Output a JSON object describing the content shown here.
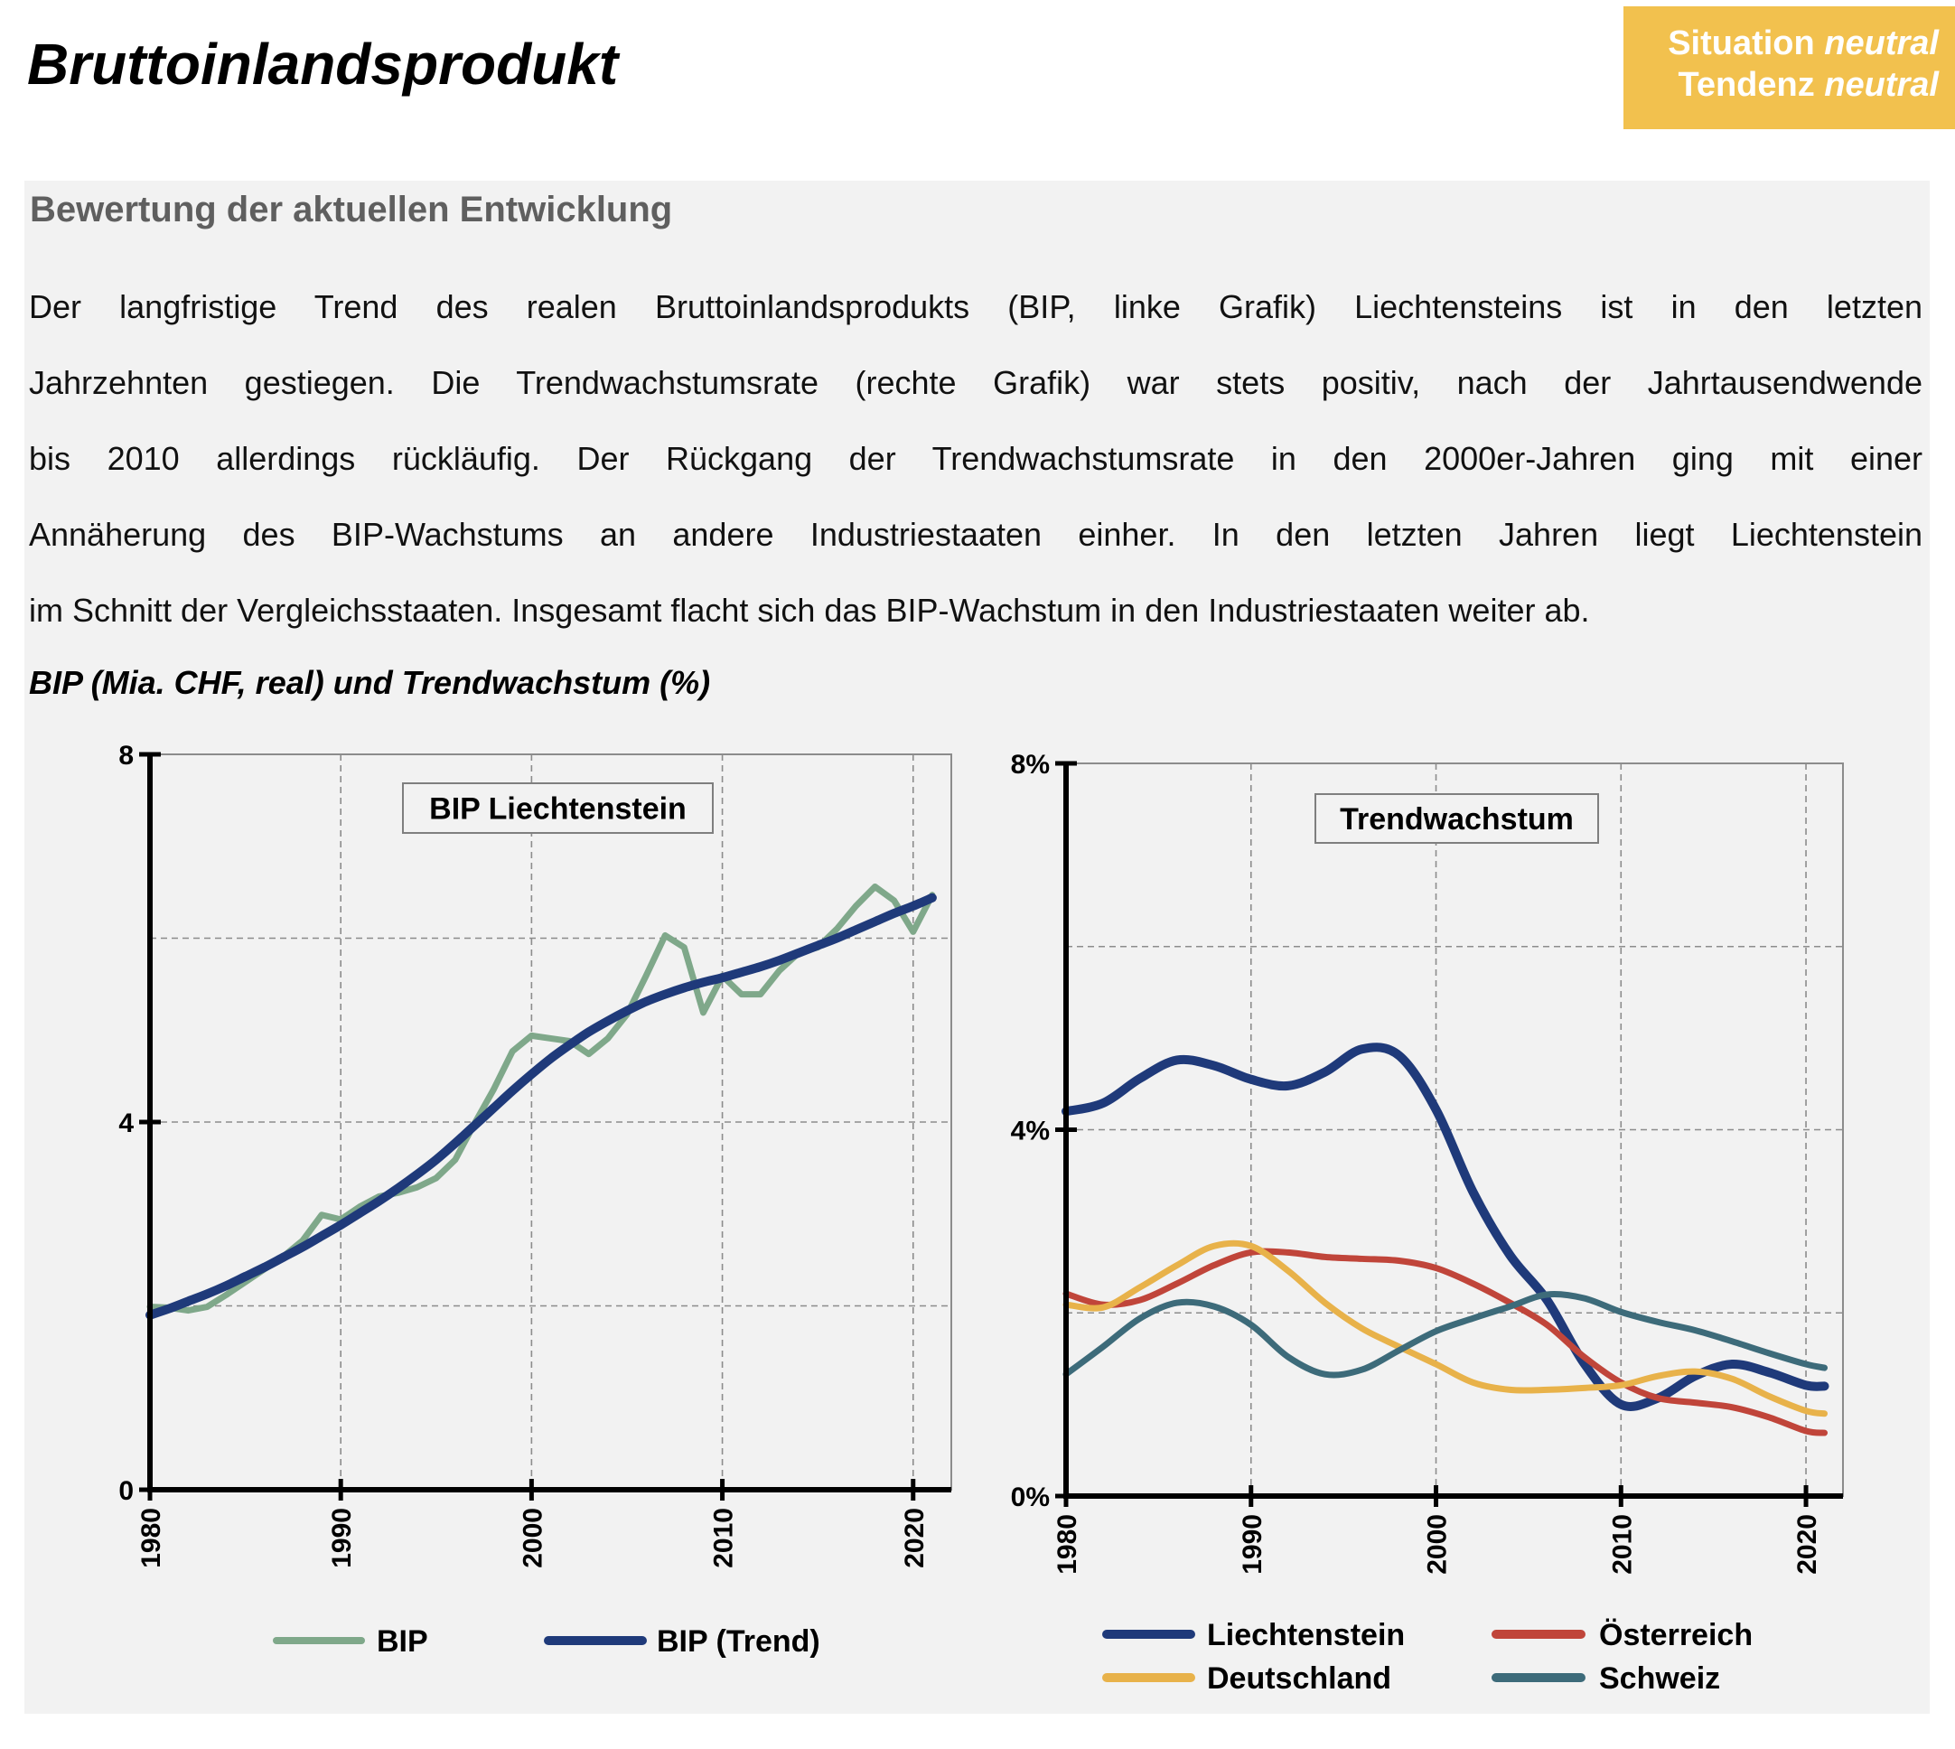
{
  "header": {
    "title": "Bruttoinlandsprodukt",
    "badge": {
      "situation_label": "Situation",
      "situation_value": "neutral",
      "tendenz_label": "Tendenz",
      "tendenz_value": "neutral",
      "color": "#f2c14e"
    }
  },
  "assessment": {
    "heading": "Bewertung der aktuellen Entwicklung",
    "lines": [
      "Der langfristige Trend des realen Bruttoinlandsprodukts (BIP, linke Grafik) Liechtensteins ist in den letzten",
      "Jahrzehnten gestiegen. Die Trendwachstumsrate (rechte Grafik) war stets positiv, nach der Jahrtausendwende",
      "bis 2010 allerdings rückläufig. Der Rückgang der Trendwachstumsrate in den 2000er-Jahren ging mit einer",
      "Annäherung des BIP-Wachstums an andere Industriestaaten einher. In den letzten Jahren liegt Liechtenstein",
      "im Schnitt der Vergleichsstaaten. Insgesamt flacht sich das BIP-Wachstum in den Industriestaaten weiter ab."
    ]
  },
  "figure_title": "BIP (Mia. CHF, real) und Trendwachstum (%)",
  "chart_data": [
    {
      "type": "line",
      "title": "BIP Liechtenstein",
      "xlabel": "",
      "ylabel": "",
      "xlim": [
        1980,
        2022
      ],
      "ylim": [
        0,
        8
      ],
      "yticks": [
        0,
        4,
        8
      ],
      "yticklabels": [
        "0",
        "4",
        "8"
      ],
      "ygrid": [
        2,
        4,
        6
      ],
      "xticks": [
        1980,
        1990,
        2000,
        2010,
        2020
      ],
      "xticklabels": [
        "1980",
        "1990",
        "2000",
        "2010",
        "2020"
      ],
      "grid": true,
      "legend": "bottom",
      "x": [
        1980,
        1981,
        1982,
        1983,
        1984,
        1985,
        1986,
        1987,
        1988,
        1989,
        1990,
        1991,
        1992,
        1993,
        1994,
        1995,
        1996,
        1997,
        1998,
        1999,
        2000,
        2001,
        2002,
        2003,
        2004,
        2005,
        2006,
        2007,
        2008,
        2009,
        2010,
        2011,
        2012,
        2013,
        2014,
        2015,
        2016,
        2017,
        2018,
        2019,
        2020,
        2021
      ],
      "series": [
        {
          "name": "BIP",
          "color": "#7fa88a",
          "smooth": false,
          "values": [
            1.99,
            1.98,
            1.95,
            1.99,
            2.12,
            2.26,
            2.4,
            2.54,
            2.71,
            2.99,
            2.94,
            3.08,
            3.19,
            3.23,
            3.29,
            3.39,
            3.59,
            3.98,
            4.35,
            4.77,
            4.94,
            4.91,
            4.88,
            4.74,
            4.91,
            5.17,
            5.59,
            6.03,
            5.9,
            5.19,
            5.59,
            5.39,
            5.39,
            5.65,
            5.84,
            5.9,
            6.1,
            6.35,
            6.56,
            6.41,
            6.07,
            6.47
          ]
        },
        {
          "name": "BIP (Trend)",
          "color": "#1f3a7a",
          "smooth": true,
          "values": [
            1.9,
            1.97,
            2.05,
            2.13,
            2.22,
            2.32,
            2.42,
            2.53,
            2.64,
            2.76,
            2.88,
            3.01,
            3.14,
            3.28,
            3.43,
            3.59,
            3.77,
            3.96,
            4.15,
            4.34,
            4.52,
            4.69,
            4.84,
            4.98,
            5.1,
            5.21,
            5.31,
            5.39,
            5.46,
            5.52,
            5.57,
            5.63,
            5.69,
            5.76,
            5.84,
            5.92,
            6.0,
            6.09,
            6.18,
            6.27,
            6.35,
            6.44
          ]
        }
      ]
    },
    {
      "type": "line",
      "title": "Trendwachstum",
      "xlabel": "",
      "ylabel": "",
      "xlim": [
        1980,
        2022
      ],
      "ylim": [
        0,
        8
      ],
      "yticks": [
        0,
        4,
        8
      ],
      "yticklabels": [
        "0%",
        "4%",
        "8%"
      ],
      "ygrid": [
        2,
        4,
        6
      ],
      "xticks": [
        1980,
        1990,
        2000,
        2010,
        2020
      ],
      "xticklabels": [
        "1980",
        "1990",
        "2000",
        "2010",
        "2020"
      ],
      "grid": true,
      "legend": "bottom",
      "x": [
        1980,
        1982,
        1984,
        1986,
        1988,
        1990,
        1992,
        1994,
        1996,
        1998,
        2000,
        2002,
        2004,
        2006,
        2008,
        2010,
        2012,
        2014,
        2016,
        2018,
        2020,
        2021
      ],
      "series": [
        {
          "name": "Liechtenstein",
          "color": "#1f3a7a",
          "smooth": true,
          "values": [
            4.2,
            4.29,
            4.56,
            4.76,
            4.7,
            4.55,
            4.48,
            4.63,
            4.88,
            4.81,
            4.22,
            3.32,
            2.63,
            2.14,
            1.45,
            1.0,
            1.07,
            1.31,
            1.44,
            1.35,
            1.21,
            1.2
          ]
        },
        {
          "name": "Österreich",
          "color": "#c0453a",
          "smooth": true,
          "values": [
            2.21,
            2.09,
            2.14,
            2.32,
            2.52,
            2.66,
            2.66,
            2.61,
            2.59,
            2.57,
            2.49,
            2.32,
            2.11,
            1.87,
            1.52,
            1.24,
            1.07,
            1.02,
            0.97,
            0.86,
            0.71,
            0.69
          ]
        },
        {
          "name": "Deutschland",
          "color": "#e8b24a",
          "smooth": true,
          "values": [
            2.09,
            2.06,
            2.28,
            2.52,
            2.73,
            2.73,
            2.46,
            2.11,
            1.83,
            1.63,
            1.44,
            1.24,
            1.16,
            1.16,
            1.18,
            1.21,
            1.31,
            1.36,
            1.28,
            1.09,
            0.93,
            0.9
          ]
        },
        {
          "name": "Schweiz",
          "color": "#3d6b7a",
          "smooth": true,
          "values": [
            1.33,
            1.63,
            1.94,
            2.11,
            2.07,
            1.87,
            1.52,
            1.33,
            1.38,
            1.59,
            1.8,
            1.94,
            2.07,
            2.2,
            2.16,
            2.01,
            1.9,
            1.81,
            1.69,
            1.56,
            1.44,
            1.4
          ]
        }
      ]
    }
  ]
}
